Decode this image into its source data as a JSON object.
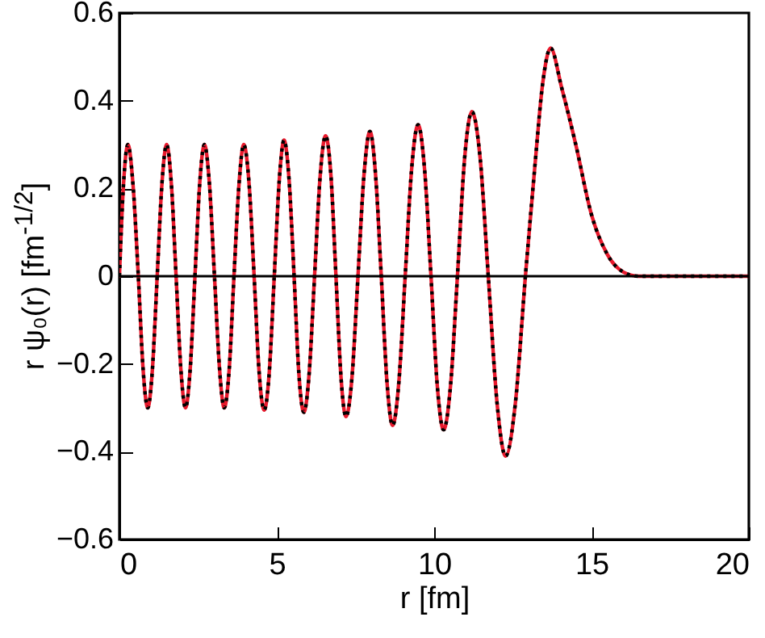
{
  "chart_data": {
    "type": "line",
    "xlabel": "r [fm]",
    "ylabel": "r ψ₀(r) [fm$^{-1/2}$]",
    "xlim": [
      0,
      20
    ],
    "xticks": [
      0,
      5,
      10,
      15,
      20
    ],
    "ylim": [
      -0.6,
      0.6
    ],
    "yticks": [
      -0.6,
      -0.4,
      -0.2,
      0,
      0.2,
      0.4,
      0.6
    ],
    "x": [
      0,
      0.13,
      0.27,
      0.43,
      0.6,
      0.75,
      0.9,
      1.05,
      1.2,
      1.35,
      1.5,
      1.65,
      1.8,
      1.95,
      2.1,
      2.25,
      2.4,
      2.55,
      2.7,
      2.86,
      3.02,
      3.18,
      3.33,
      3.49,
      3.64,
      3.8,
      3.95,
      4.12,
      4.28,
      4.44,
      4.6,
      4.76,
      4.92,
      5.08,
      5.23,
      5.39,
      5.55,
      5.7,
      5.86,
      6.03,
      6.2,
      6.38,
      6.55,
      6.72,
      6.88,
      7.04,
      7.2,
      7.39,
      7.58,
      7.77,
      7.96,
      8.14,
      8.32,
      8.5,
      8.68,
      8.88,
      9.08,
      9.28,
      9.49,
      9.7,
      9.9,
      10.1,
      10.3,
      10.52,
      10.74,
      10.97,
      11.2,
      11.46,
      11.72,
      12.0,
      12.27,
      12.58,
      12.9,
      13.2,
      13.45,
      13.7,
      14.05,
      14.5,
      15.0,
      15.5,
      16.0,
      16.5,
      20
    ],
    "series": [
      {
        "color": "#e8192c",
        "line_style": "solid",
        "values": [
          0,
          0.21,
          0.3,
          0.21,
          0,
          -0.21,
          -0.3,
          -0.21,
          0,
          0.21,
          0.3,
          0.21,
          0,
          -0.21,
          -0.3,
          -0.21,
          0,
          0.21,
          0.3,
          0.21,
          0,
          -0.21,
          -0.3,
          -0.21,
          0,
          0.21,
          0.3,
          0.21,
          0,
          -0.22,
          -0.305,
          -0.22,
          0,
          0.22,
          0.31,
          0.22,
          0,
          -0.22,
          -0.31,
          -0.22,
          0,
          0.23,
          0.32,
          0.23,
          0,
          -0.23,
          -0.32,
          -0.23,
          0,
          0.23,
          0.33,
          0.23,
          0,
          -0.24,
          -0.34,
          -0.24,
          0,
          0.24,
          0.345,
          0.24,
          0,
          -0.25,
          -0.35,
          -0.25,
          0,
          0.27,
          0.375,
          0.27,
          0,
          -0.29,
          -0.41,
          -0.29,
          0,
          0.25,
          0.44,
          0.52,
          0.43,
          0.3,
          0.14,
          0.05,
          0.01,
          0,
          0
        ]
      },
      {
        "color": "#000000",
        "line_style": "dotted",
        "values": [
          0,
          0.21,
          0.3,
          0.21,
          0,
          -0.21,
          -0.3,
          -0.21,
          0,
          0.21,
          0.3,
          0.21,
          0,
          -0.21,
          -0.3,
          -0.21,
          0,
          0.21,
          0.3,
          0.21,
          0,
          -0.21,
          -0.3,
          -0.21,
          0,
          0.21,
          0.3,
          0.21,
          0,
          -0.22,
          -0.305,
          -0.22,
          0,
          0.22,
          0.31,
          0.22,
          0,
          -0.22,
          -0.31,
          -0.22,
          0,
          0.23,
          0.32,
          0.23,
          0,
          -0.23,
          -0.32,
          -0.23,
          0,
          0.23,
          0.33,
          0.23,
          0,
          -0.24,
          -0.34,
          -0.24,
          0,
          0.24,
          0.345,
          0.24,
          0,
          -0.25,
          -0.35,
          -0.25,
          0,
          0.27,
          0.375,
          0.27,
          0,
          -0.29,
          -0.41,
          -0.29,
          0,
          0.25,
          0.44,
          0.52,
          0.43,
          0.3,
          0.14,
          0.05,
          0.01,
          0,
          0
        ]
      }
    ],
    "ref_lines": [
      {
        "axis": "y",
        "value": 0,
        "color": "#000000"
      }
    ]
  }
}
